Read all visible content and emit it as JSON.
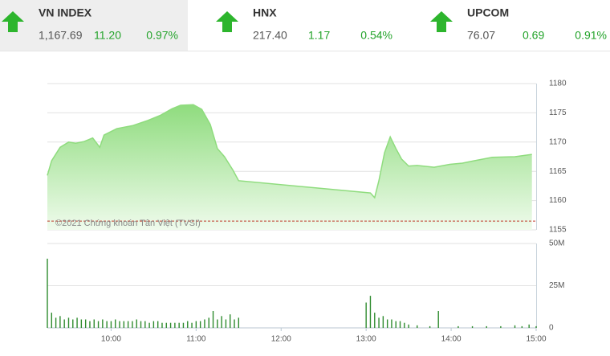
{
  "header": {
    "indices": [
      {
        "name": "VN INDEX",
        "value": "1,167.69",
        "change": "11.20",
        "percent": "0.97%"
      },
      {
        "name": "HNX",
        "value": "217.40",
        "change": "1.17",
        "percent": "0.54%"
      },
      {
        "name": "UPCOM",
        "value": "76.07",
        "change": "0.69",
        "percent": "0.91%"
      }
    ]
  },
  "chart_data": [
    {
      "type": "area",
      "annotation": "©2021 Chứng khoán Tân Việt (TVSI)",
      "color": "#8fdc7e",
      "x": [
        555,
        558,
        564,
        570,
        575,
        581,
        587,
        592,
        595,
        604,
        615,
        626,
        635,
        643,
        649,
        658,
        664,
        670,
        675,
        680,
        686,
        690,
        783,
        786,
        789,
        793,
        797,
        801,
        805,
        810,
        816,
        828,
        839,
        848,
        856,
        869,
        885,
        897
      ],
      "values": [
        1164.3,
        1166.8,
        1169.1,
        1170.0,
        1169.8,
        1170.1,
        1170.7,
        1169.1,
        1171.2,
        1172.3,
        1172.8,
        1173.7,
        1174.6,
        1175.7,
        1176.3,
        1176.4,
        1175.6,
        1173.0,
        1168.9,
        1167.5,
        1165.2,
        1163.4,
        1161.3,
        1160.5,
        1163.4,
        1168.2,
        1170.9,
        1168.9,
        1167.1,
        1165.9,
        1166.0,
        1165.7,
        1166.2,
        1166.4,
        1166.8,
        1167.4,
        1167.5,
        1167.9
      ],
      "reference": 1156.49,
      "reference_color": "#c0392b",
      "xlim": [
        555,
        900
      ],
      "ylim": [
        1155,
        1180
      ],
      "yticks": [
        1155,
        1160,
        1165,
        1170,
        1175,
        1180
      ],
      "grid": true
    },
    {
      "type": "bar",
      "color": "#2e8b2e",
      "x": [
        555,
        558,
        561,
        564,
        567,
        570,
        573,
        576,
        579,
        582,
        585,
        588,
        591,
        594,
        597,
        600,
        603,
        606,
        609,
        612,
        615,
        618,
        621,
        624,
        627,
        630,
        633,
        636,
        639,
        642,
        645,
        648,
        651,
        654,
        657,
        660,
        663,
        666,
        669,
        672,
        675,
        678,
        681,
        684,
        687,
        690,
        780,
        783,
        786,
        789,
        792,
        795,
        798,
        801,
        804,
        807,
        810,
        816,
        825,
        831,
        845,
        855,
        865,
        875,
        885,
        890,
        895,
        900
      ],
      "values": [
        41,
        9,
        6,
        7,
        5,
        6,
        5,
        6,
        5,
        5,
        4,
        5,
        4,
        5,
        4,
        4,
        5,
        4,
        4,
        4,
        4,
        5,
        4,
        4,
        3,
        4,
        4,
        3,
        3,
        3,
        3,
        3,
        3,
        4,
        3,
        4,
        4,
        5,
        6,
        10,
        5,
        7,
        5,
        8,
        5,
        6,
        15,
        19,
        9,
        6,
        7,
        5,
        5,
        4,
        4,
        3,
        2,
        1.5,
        1,
        10,
        1,
        1,
        1,
        1,
        1.5,
        1,
        2,
        1
      ],
      "xlim": [
        555,
        900
      ],
      "xticks": [
        {
          "value": 600,
          "label": "10:00"
        },
        {
          "value": 660,
          "label": "11:00"
        },
        {
          "value": 720,
          "label": "12:00"
        },
        {
          "value": 780,
          "label": "13:00"
        },
        {
          "value": 840,
          "label": "14:00"
        },
        {
          "value": 900,
          "label": "15:00"
        }
      ],
      "ylim": [
        0,
        50
      ],
      "yticks": [
        0,
        {
          "value": 25,
          "label": "25M"
        },
        {
          "value": 50,
          "label": "50M"
        }
      ],
      "grid": true
    }
  ]
}
